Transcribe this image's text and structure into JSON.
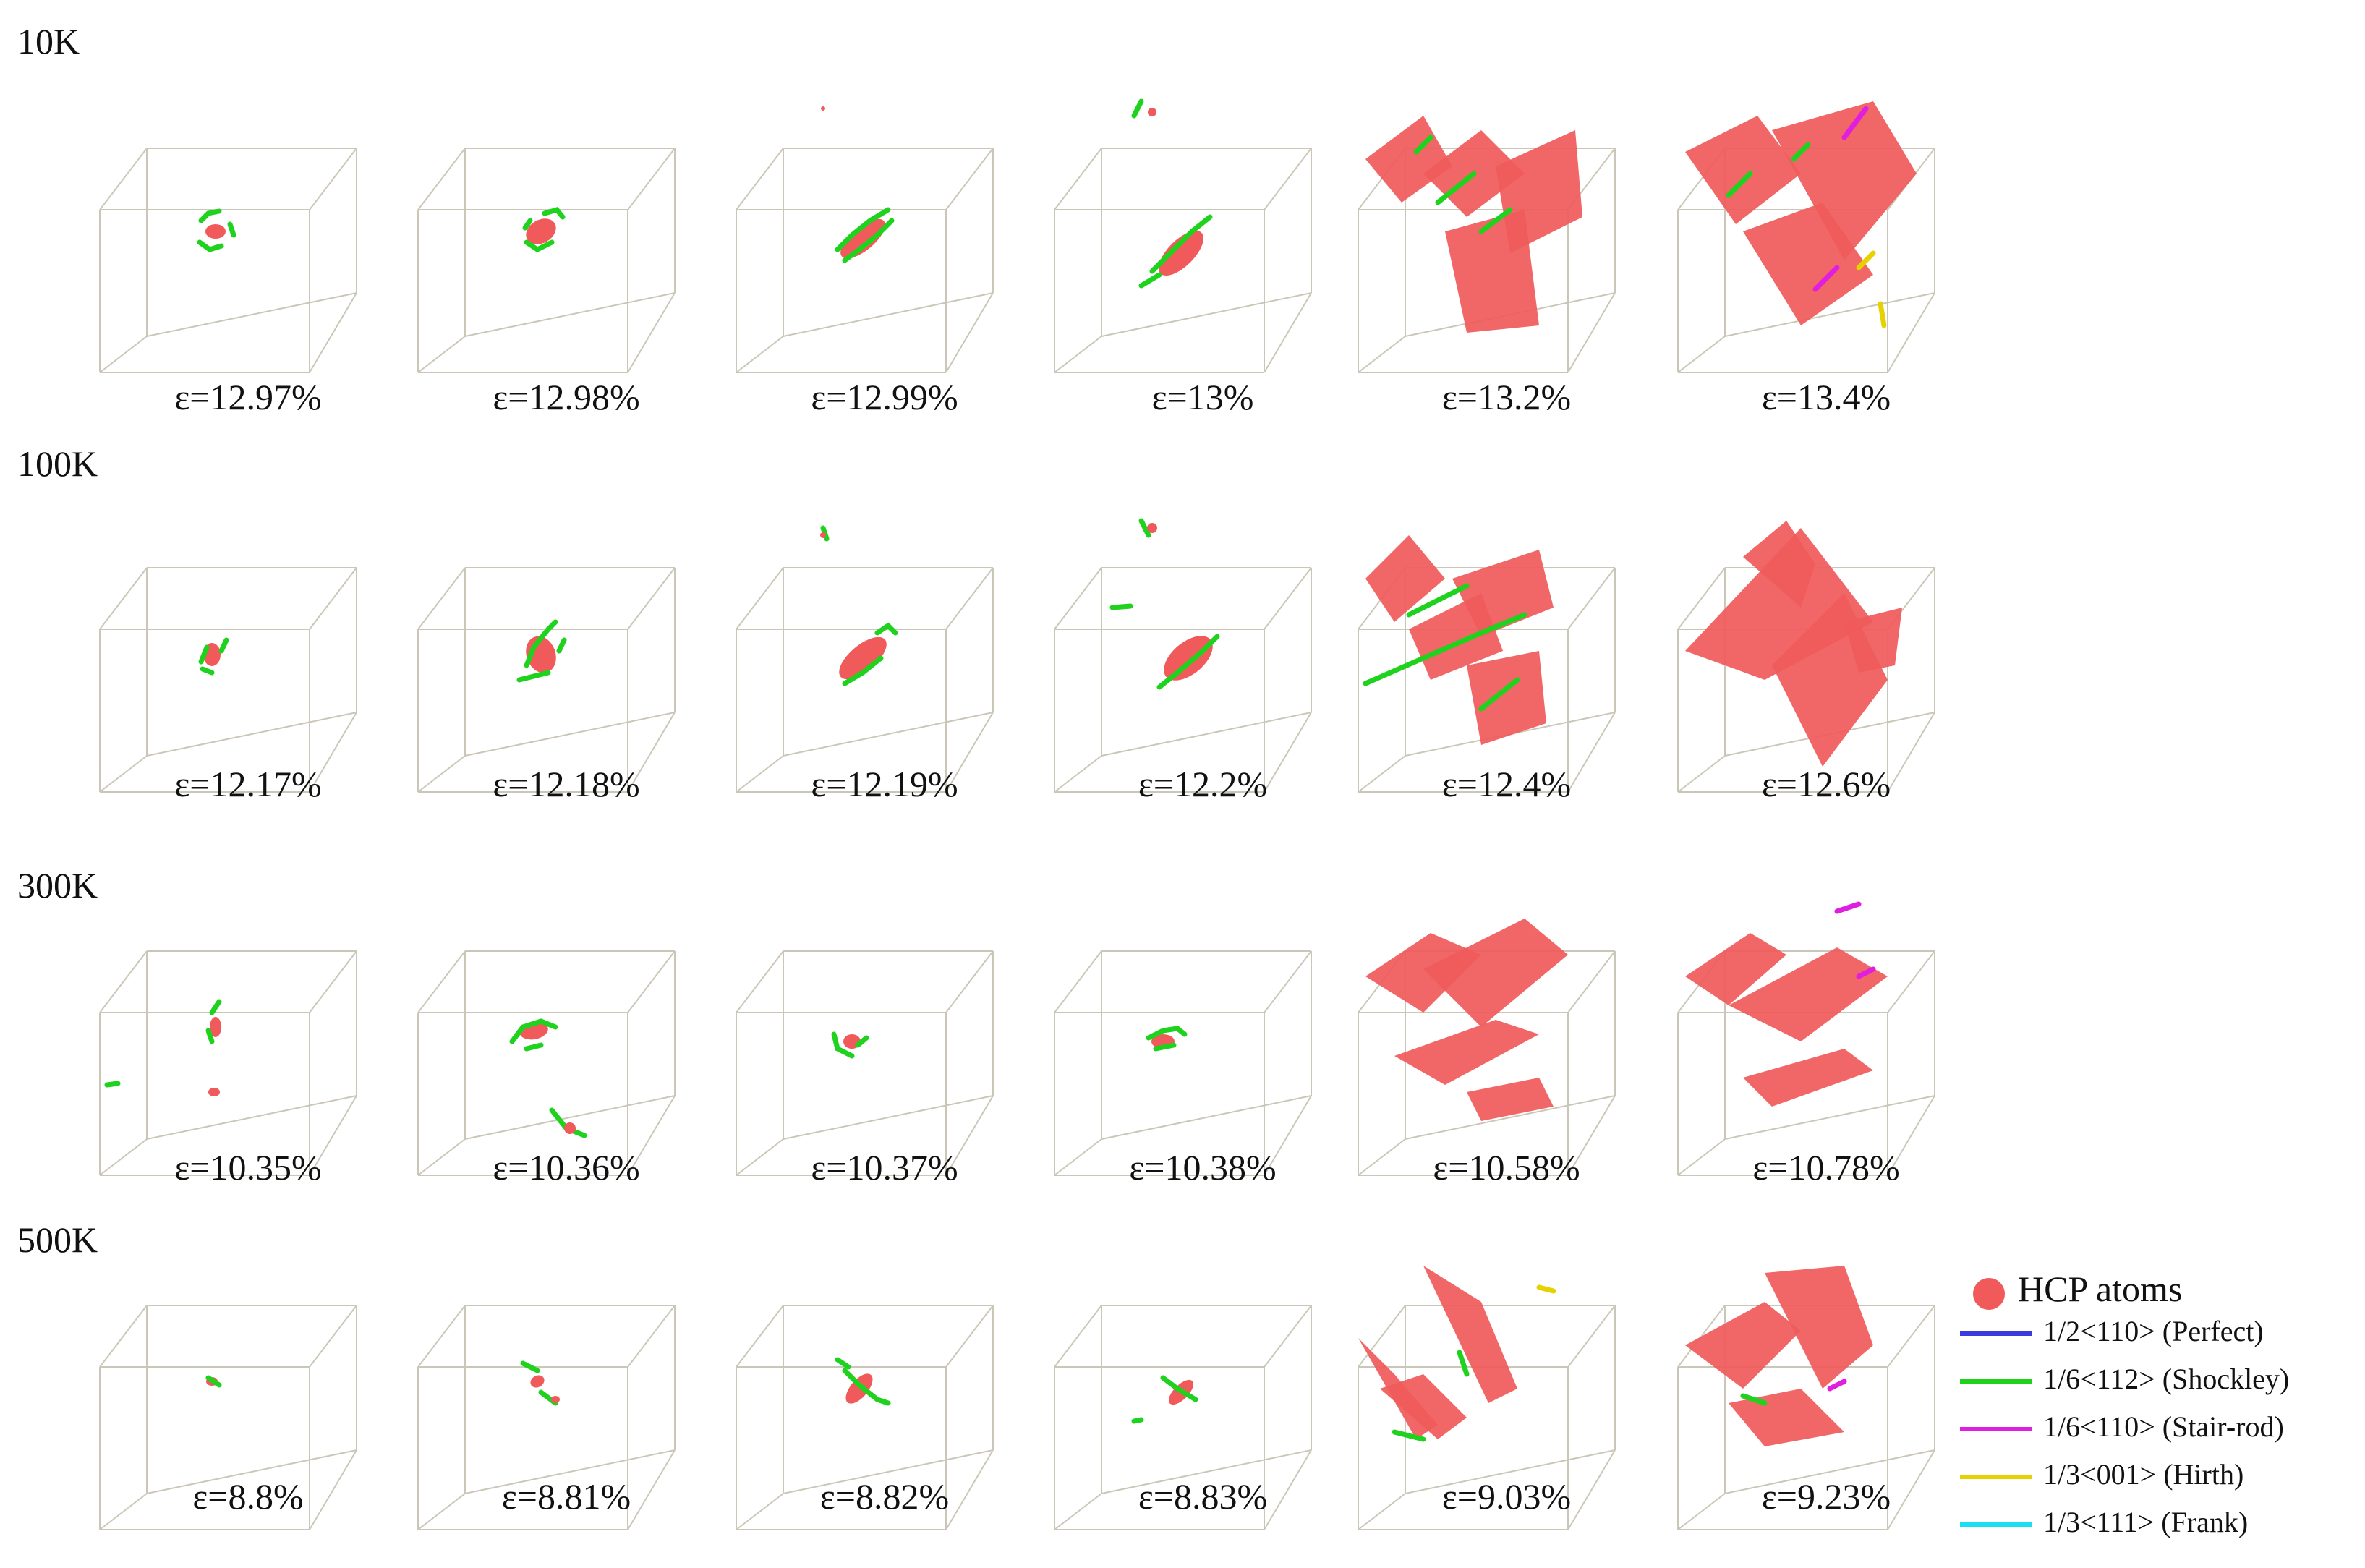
{
  "rows": [
    {
      "label": "10K",
      "strains": [
        "ε=12.97%",
        "ε=12.98%",
        "ε=12.99%",
        "ε=13%",
        "ε=13.2%",
        "ε=13.4%"
      ]
    },
    {
      "label": "100K",
      "strains": [
        "ε=12.17%",
        "ε=12.18%",
        "ε=12.19%",
        "ε=12.2%",
        "ε=12.4%",
        "ε=12.6%"
      ]
    },
    {
      "label": "300K",
      "strains": [
        "ε=10.35%",
        "ε=10.36%",
        "ε=10.37%",
        "ε=10.38%",
        "ε=10.58%",
        "ε=10.78%"
      ]
    },
    {
      "label": "500K",
      "strains": [
        "ε=8.8%",
        "ε=8.81%",
        "ε=8.82%",
        "ε=8.83%",
        "ε=9.03%",
        "ε=9.23%"
      ]
    }
  ],
  "legend": {
    "hcp_label": "HCP atoms",
    "hcp_color": "#f05a5a",
    "dislocations": [
      {
        "label": "1/2<110> (Perfect)",
        "color": "#3a3adf"
      },
      {
        "label": "1/6<112> (Shockley)",
        "color": "#1ed21e"
      },
      {
        "label": "1/6<110> (Stair-rod)",
        "color": "#e01ee0"
      },
      {
        "label": "1/3<001> (Hirth)",
        "color": "#e6d200"
      },
      {
        "label": "1/3<111> (Frank)",
        "color": "#18e0f0"
      }
    ]
  }
}
